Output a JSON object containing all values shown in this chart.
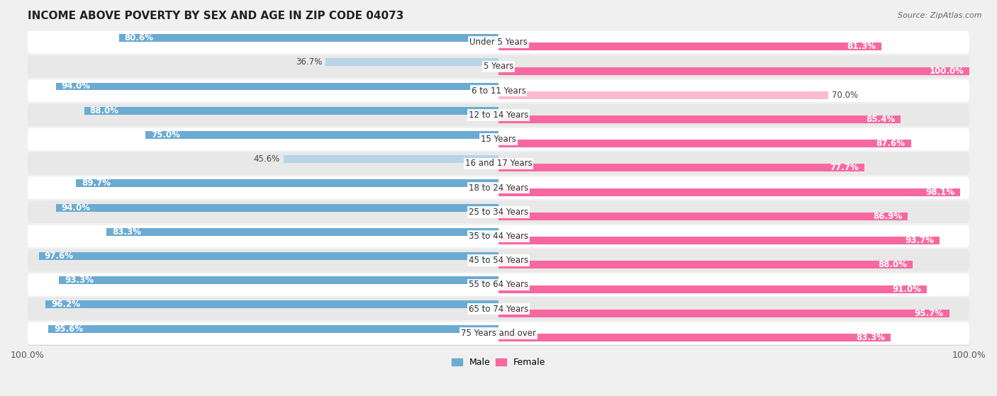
{
  "title": "INCOME ABOVE POVERTY BY SEX AND AGE IN ZIP CODE 04073",
  "source": "Source: ZipAtlas.com",
  "categories": [
    "Under 5 Years",
    "5 Years",
    "6 to 11 Years",
    "12 to 14 Years",
    "15 Years",
    "16 and 17 Years",
    "18 to 24 Years",
    "25 to 34 Years",
    "35 to 44 Years",
    "45 to 54 Years",
    "55 to 64 Years",
    "65 to 74 Years",
    "75 Years and over"
  ],
  "male_values": [
    80.6,
    36.7,
    94.0,
    88.0,
    75.0,
    45.6,
    89.7,
    94.0,
    83.3,
    97.6,
    93.3,
    96.2,
    95.6
  ],
  "female_values": [
    81.3,
    100.0,
    70.0,
    85.4,
    87.6,
    77.7,
    98.1,
    86.9,
    93.7,
    88.0,
    91.0,
    95.7,
    83.3
  ],
  "male_color": "#6aabd2",
  "female_color": "#f768a1",
  "male_light_color": "#b8d4e8",
  "female_light_color": "#fbbad1",
  "background_color": "#f0f0f0",
  "row_color_odd": "#ffffff",
  "row_color_even": "#e8e8e8",
  "title_fontsize": 11,
  "label_fontsize": 8.5,
  "tick_fontsize": 9,
  "category_fontsize": 8.5,
  "source_fontsize": 8
}
